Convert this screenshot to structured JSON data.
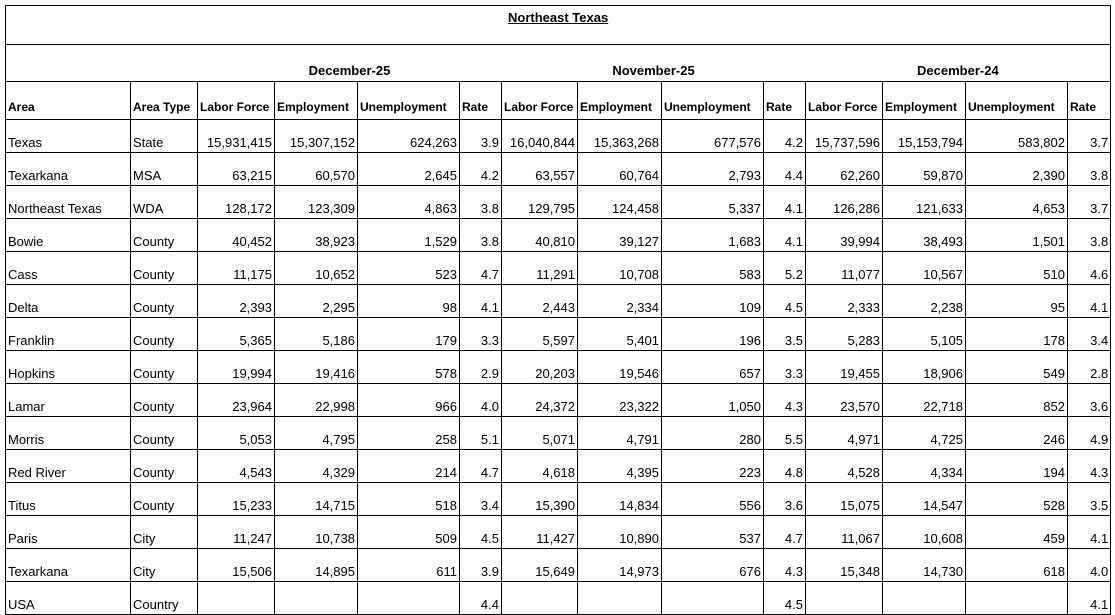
{
  "table": {
    "title": "Northeast Texas",
    "periods": [
      "December-25",
      "November-25",
      "December-24"
    ],
    "columns": [
      "Area",
      "Area Type",
      "Labor Force",
      "Employment",
      "Unemployment",
      "Rate",
      "Labor Force",
      "Employment",
      "Unemployment",
      "Rate",
      "Labor Force",
      "Employment",
      "Unemployment",
      "Rate"
    ],
    "rows": [
      [
        "Texas",
        "State",
        "15,931,415",
        "15,307,152",
        "624,263",
        "3.9",
        "16,040,844",
        "15,363,268",
        "677,576",
        "4.2",
        "15,737,596",
        "15,153,794",
        "583,802",
        "3.7"
      ],
      [
        "Texarkana",
        "MSA",
        "63,215",
        "60,570",
        "2,645",
        "4.2",
        "63,557",
        "60,764",
        "2,793",
        "4.4",
        "62,260",
        "59,870",
        "2,390",
        "3.8"
      ],
      [
        "Northeast Texas",
        "WDA",
        "128,172",
        "123,309",
        "4,863",
        "3.8",
        "129,795",
        "124,458",
        "5,337",
        "4.1",
        "126,286",
        "121,633",
        "4,653",
        "3.7"
      ],
      [
        "Bowie",
        "County",
        "40,452",
        "38,923",
        "1,529",
        "3.8",
        "40,810",
        "39,127",
        "1,683",
        "4.1",
        "39,994",
        "38,493",
        "1,501",
        "3.8"
      ],
      [
        "Cass",
        "County",
        "11,175",
        "10,652",
        "523",
        "4.7",
        "11,291",
        "10,708",
        "583",
        "5.2",
        "11,077",
        "10,567",
        "510",
        "4.6"
      ],
      [
        "Delta",
        "County",
        "2,393",
        "2,295",
        "98",
        "4.1",
        "2,443",
        "2,334",
        "109",
        "4.5",
        "2,333",
        "2,238",
        "95",
        "4.1"
      ],
      [
        "Franklin",
        "County",
        "5,365",
        "5,186",
        "179",
        "3.3",
        "5,597",
        "5,401",
        "196",
        "3.5",
        "5,283",
        "5,105",
        "178",
        "3.4"
      ],
      [
        "Hopkins",
        "County",
        "19,994",
        "19,416",
        "578",
        "2.9",
        "20,203",
        "19,546",
        "657",
        "3.3",
        "19,455",
        "18,906",
        "549",
        "2.8"
      ],
      [
        "Lamar",
        "County",
        "23,964",
        "22,998",
        "966",
        "4.0",
        "24,372",
        "23,322",
        "1,050",
        "4.3",
        "23,570",
        "22,718",
        "852",
        "3.6"
      ],
      [
        "Morris",
        "County",
        "5,053",
        "4,795",
        "258",
        "5.1",
        "5,071",
        "4,791",
        "280",
        "5.5",
        "4,971",
        "4,725",
        "246",
        "4.9"
      ],
      [
        "Red River",
        "County",
        "4,543",
        "4,329",
        "214",
        "4.7",
        "4,618",
        "4,395",
        "223",
        "4.8",
        "4,528",
        "4,334",
        "194",
        "4.3"
      ],
      [
        "Titus",
        "County",
        "15,233",
        "14,715",
        "518",
        "3.4",
        "15,390",
        "14,834",
        "556",
        "3.6",
        "15,075",
        "14,547",
        "528",
        "3.5"
      ],
      [
        "Paris",
        "City",
        "11,247",
        "10,738",
        "509",
        "4.5",
        "11,427",
        "10,890",
        "537",
        "4.7",
        "11,067",
        "10,608",
        "459",
        "4.1"
      ],
      [
        "Texarkana",
        "City",
        "15,506",
        "14,895",
        "611",
        "3.9",
        "15,649",
        "14,973",
        "676",
        "4.3",
        "15,348",
        "14,730",
        "618",
        "4.0"
      ],
      [
        "USA",
        "Country",
        null,
        null,
        null,
        "4.4",
        null,
        null,
        null,
        "4.5",
        null,
        null,
        null,
        "4.1"
      ]
    ]
  }
}
